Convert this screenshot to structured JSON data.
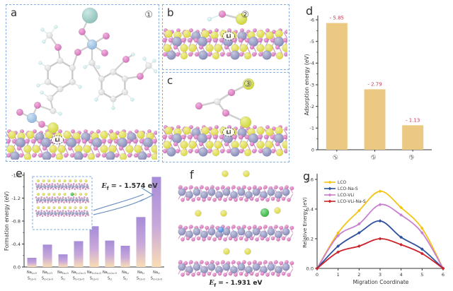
{
  "panels": {
    "a": {
      "label": "a",
      "badge": "①",
      "surface_label": "Li"
    },
    "b": {
      "label": "b",
      "badge": "②",
      "surface_label": "Li"
    },
    "c": {
      "label": "c",
      "badge": "③",
      "surface_label": "Li"
    },
    "d": {
      "label": "d"
    },
    "e": {
      "label": "e",
      "annotation": {
        "var": "E",
        "sub": "f",
        "rest": " = - 1.574 eV"
      }
    },
    "f": {
      "label": "f",
      "caption": {
        "var": "E",
        "sub": "f",
        "rest": " = - 1.931 eV"
      }
    },
    "g": {
      "label": "g"
    }
  },
  "chart_data": [
    {
      "id": "adsorption-energy",
      "panel": "d",
      "type": "bar",
      "title": "",
      "categories": [
        "①",
        "②",
        "③"
      ],
      "values": [
        -5.85,
        -2.79,
        -1.13
      ],
      "bar_labels": [
        "- 5.85",
        "- 2.79",
        "- 1.13"
      ],
      "ylabel": "Adsorption energy (eV)",
      "ylim": [
        0,
        -6
      ],
      "yticks": [
        "0",
        "-1",
        "-2",
        "-3",
        "-4",
        "-5",
        "-6"
      ],
      "grid": false,
      "axis_inverted": true,
      "bar_color": "#ebc983",
      "label_color": "#c23b52"
    },
    {
      "id": "formation-energy",
      "panel": "e",
      "type": "bar",
      "title": "",
      "categories": [
        {
          "line1": "Na",
          "line1_sub": "Li-O",
          "line2": "S",
          "line2_sub": "Co-O"
        },
        {
          "line1": "Na",
          "line1_sub": "Li-O",
          "line2": "S",
          "line2_sub": "Li-Co-O"
        },
        {
          "line1": "Na",
          "line1_sub": "Co-O",
          "line2": "S",
          "line2_sub": "Li"
        },
        {
          "line1": "Na",
          "line1_sub": "Li-Co-O",
          "line2": "S",
          "line2_sub": "Li-Co-O"
        },
        {
          "line1": "Na",
          "line1_sub": "Li-Co-O",
          "line2": "S",
          "line2_sub": "Co-O"
        },
        {
          "line1": "Na",
          "line1_sub": "Li-Co-O",
          "line2": "S",
          "line2_sub": "Li"
        },
        {
          "line1": "Na",
          "line1_sub": "Li",
          "line2": "S",
          "line2_sub": "Li"
        },
        {
          "line1": "Na",
          "line1_sub": "Li",
          "line2": "S",
          "line2_sub": "Co-O"
        },
        {
          "line1": "Na",
          "line1_sub": "Li",
          "line2": "S",
          "line2_sub": "Li-Co-O"
        }
      ],
      "values": [
        -0.16,
        -0.39,
        -0.22,
        -0.45,
        -0.71,
        -0.46,
        -0.37,
        -0.87,
        -1.57
      ],
      "ylabel": "Formation energy (eV)",
      "ylim": [
        0,
        -1.6
      ],
      "yticks": [
        "0.0",
        "-0.4",
        "-0.8",
        "-1.2",
        "-1.6"
      ],
      "grid": false,
      "axis_inverted": true,
      "bar_gradient_top": "#a68cd8",
      "bar_gradient_bottom": "#f9ddb5",
      "annotation_value": "- 1.574 eV"
    },
    {
      "id": "migration-barrier",
      "panel": "g",
      "type": "line",
      "title": "",
      "x": [
        0,
        1,
        2,
        3,
        4,
        5,
        6
      ],
      "series": [
        {
          "name": "LCO",
          "color": "#f4c415",
          "values": [
            0,
            0.24,
            0.39,
            0.52,
            0.41,
            0.27,
            0
          ]
        },
        {
          "name": "LCO-Na-S",
          "color": "#2d4f9e",
          "values": [
            0,
            0.15,
            0.24,
            0.32,
            0.21,
            0.13,
            0
          ]
        },
        {
          "name": "LCO-VLi",
          "color": "#c97fd0",
          "values": [
            0,
            0.22,
            0.3,
            0.43,
            0.36,
            0.24,
            0
          ]
        },
        {
          "name": "LCO-VLi-Na-S",
          "color": "#cb222b",
          "values": [
            0,
            0.11,
            0.15,
            0.2,
            0.16,
            0.1,
            0
          ]
        }
      ],
      "xlabel": "Migration Coordinate",
      "ylabel": "Relative Energy (eV)",
      "ylim": [
        0,
        0.6
      ],
      "yticks": [
        "0.0",
        "0.2",
        "0.4",
        "0.6"
      ],
      "xticks": [
        "0",
        "1",
        "2",
        "3",
        "4",
        "5",
        "6"
      ],
      "legend_position": "top-left",
      "grid": false
    }
  ],
  "atoms": {
    "oxygen": {
      "fill": "#cf6ab4",
      "hi": "#f2b5de"
    },
    "cobalt": {
      "fill": "#7e83b2",
      "hi": "#c6c9e0"
    },
    "lithium": {
      "fill": "#d8d435",
      "hi": "#f2f0a4"
    },
    "carbon": {
      "fill": "#d4d4d4",
      "hi": "#f7f7f7"
    },
    "hydrogen": {
      "fill": "#bfe9e9",
      "hi": "#ecfbfb"
    },
    "sulfur_yellow": {
      "fill": "#ccd22e",
      "hi": "#eef2a0"
    },
    "sulfur_blue": {
      "fill": "#8ab3d9",
      "hi": "#d0e5f5"
    },
    "sodium_teal": {
      "fill": "#86bdb5",
      "hi": "#cde9e4"
    },
    "sodium_green": {
      "fill": "#2fae3a",
      "hi": "#96e29e"
    },
    "sulfur_dopant": {
      "fill": "#3e7ed8",
      "hi": "#abcef2"
    }
  },
  "style": {
    "border_color": "#86aede",
    "axis_color": "#333333",
    "bond_pink": "#d794c9",
    "bond_violet": "#b9a3d6",
    "arrow_color": "#6b90c0"
  }
}
